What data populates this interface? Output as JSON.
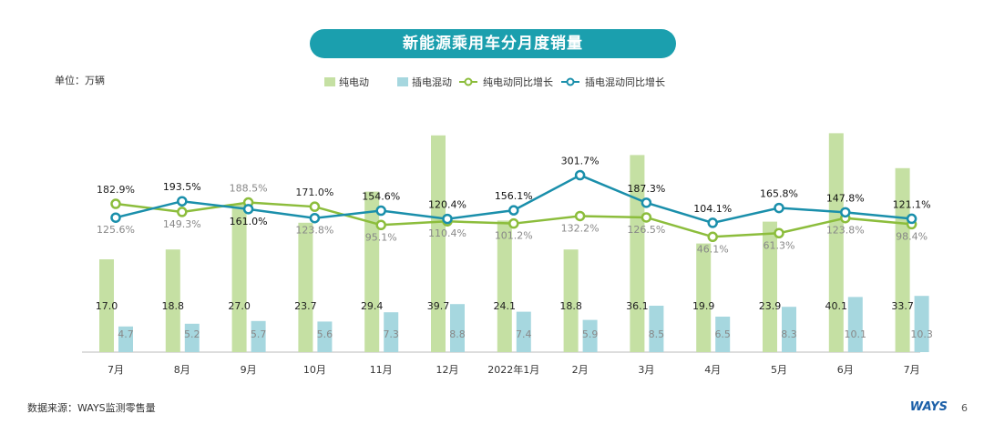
{
  "title": "新能源乘用车分月度销量",
  "unit": "单位：万辆",
  "source": "数据来源：WAYS监测零售量",
  "brand": "WAYS",
  "page": "6",
  "colors": {
    "bev": "#c5e0a3",
    "phev": "#a6d7df",
    "bev_line": "#8cbd3c",
    "phev_line": "#1a8fab",
    "title_bg": "#1b9fae"
  },
  "chart_data": {
    "type": "bar+line",
    "categories": [
      "7月",
      "8月",
      "9月",
      "10月",
      "11月",
      "12月",
      "2022年1月",
      "2月",
      "3月",
      "4月",
      "5月",
      "6月",
      "7月"
    ],
    "series": [
      {
        "name": "纯电动",
        "type": "bar",
        "values": [
          17.0,
          18.8,
          27.0,
          23.7,
          29.4,
          39.7,
          24.1,
          18.8,
          36.1,
          19.9,
          23.9,
          40.1,
          33.7
        ],
        "labels": [
          "17.0",
          "18.8",
          "27.0",
          "23.7",
          "29.4",
          "39.7",
          "24.1",
          "18.8",
          "36.1",
          "19.9",
          "23.9",
          "40.1",
          "33.7"
        ]
      },
      {
        "name": "插电混动",
        "type": "bar",
        "values": [
          4.7,
          5.2,
          5.7,
          5.6,
          7.3,
          8.8,
          7.4,
          5.9,
          8.5,
          6.5,
          8.3,
          10.1,
          10.3
        ],
        "labels": [
          "4.7",
          "5.2",
          "5.7",
          "5.6",
          "7.3",
          "8.8",
          "7.4",
          "5.9",
          "8.5",
          "6.5",
          "8.3",
          "10.1",
          "10.3"
        ]
      },
      {
        "name": "纯电动同比增长",
        "type": "line",
        "values": [
          182.9,
          149.3,
          188.5,
          171.0,
          95.1,
          110.4,
          101.2,
          132.2,
          126.5,
          46.1,
          61.3,
          123.8,
          98.4
        ],
        "labels": [
          "182.9%",
          "149.3%",
          "188.5%",
          "171.0%",
          "95.1%",
          "110.4%",
          "101.2%",
          "132.2%",
          "126.5%",
          "46.1%",
          "61.3%",
          "123.8%",
          "98.4%"
        ]
      },
      {
        "name": "插电混动同比增长",
        "type": "line",
        "values": [
          125.6,
          193.5,
          161.0,
          123.8,
          154.6,
          120.4,
          156.1,
          301.7,
          187.3,
          104.1,
          165.8,
          147.8,
          121.1
        ],
        "labels": [
          "125.6%",
          "193.5%",
          "161.0%",
          "123.8%",
          "154.6%",
          "120.4%",
          "156.1%",
          "301.7%",
          "187.3%",
          "104.1%",
          "165.8%",
          "147.8%",
          "121.1%"
        ]
      }
    ],
    "legend_position": "top-center",
    "grid": false
  }
}
